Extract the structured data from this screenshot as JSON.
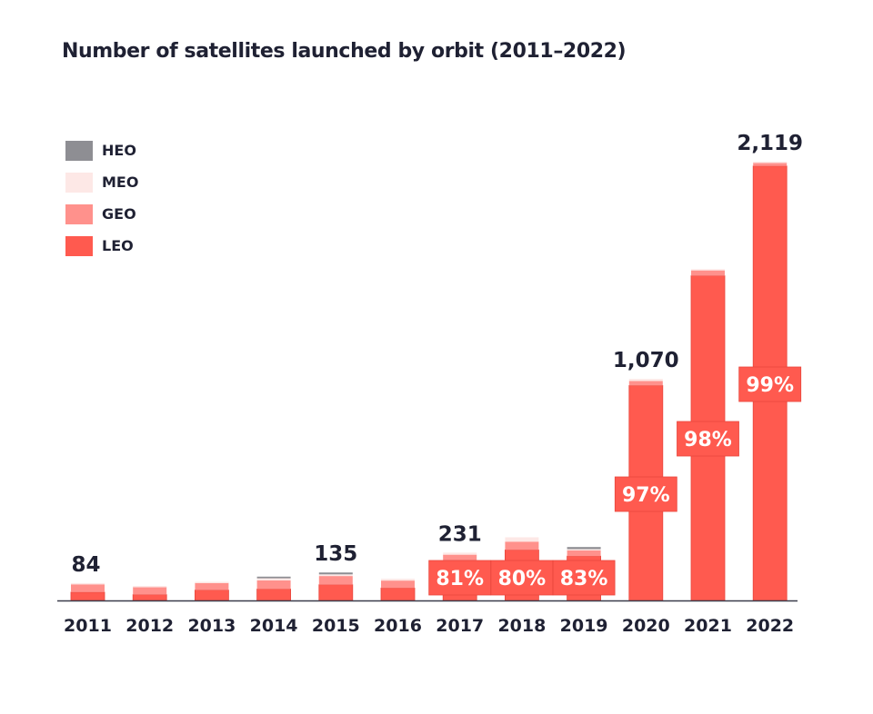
{
  "chart_data": {
    "type": "bar",
    "stacked": true,
    "title": "Number of satellites launched by orbit (2011–2022)",
    "xlabel": "",
    "ylabel": "",
    "ylim": [
      0,
      2119
    ],
    "grid": false,
    "legend_position": "top-left",
    "categories": [
      "2011",
      "2012",
      "2013",
      "2014",
      "2015",
      "2016",
      "2017",
      "2018",
      "2019",
      "2020",
      "2021",
      "2022"
    ],
    "series": [
      {
        "name": "LEO",
        "color": "#ff5a4f",
        "values": [
          40,
          28,
          50,
          55,
          76,
          60,
          187,
          244,
          214,
          1038,
          1568,
          2098
        ]
      },
      {
        "name": "GEO",
        "color": "#ff918c",
        "values": [
          38,
          38,
          36,
          42,
          42,
          36,
          34,
          40,
          30,
          22,
          28,
          17
        ]
      },
      {
        "name": "MEO",
        "color": "#fde8e6",
        "values": [
          6,
          4,
          4,
          10,
          8,
          9,
          10,
          21,
          4,
          10,
          4,
          4
        ]
      },
      {
        "name": "HEO",
        "color": "#8e8e93",
        "values": [
          0,
          0,
          0,
          8,
          9,
          0,
          0,
          0,
          10,
          0,
          0,
          0
        ]
      }
    ],
    "totals_shown": {
      "2011": "84",
      "2015": "135",
      "2017": "231",
      "2020": "1,070",
      "2022": "2,119"
    },
    "leo_share_labels": {
      "2017": "81%",
      "2018": "80%",
      "2019": "83%",
      "2020": "97%",
      "2021": "98%",
      "2022": "99%"
    },
    "axis_color": "#3a3b4a"
  },
  "legend": [
    {
      "name": "HEO",
      "color": "#8e8e93"
    },
    {
      "name": "MEO",
      "color": "#fde8e6"
    },
    {
      "name": "GEO",
      "color": "#ff918c"
    },
    {
      "name": "LEO",
      "color": "#ff5a4f"
    }
  ]
}
